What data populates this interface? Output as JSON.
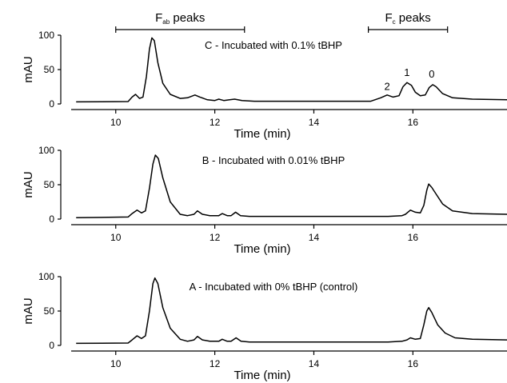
{
  "chart_data": {
    "type": "line",
    "x_unit": "min",
    "xlim": [
      9.1,
      17.9
    ],
    "ylim": [
      0,
      100
    ],
    "x_ticks": [
      10,
      12,
      14,
      16
    ],
    "y_ticks": [
      0,
      50,
      100
    ],
    "brackets": [
      {
        "main": "F",
        "sub": "ab",
        "rest": " peaks",
        "x_start": 10.0,
        "x_end": 12.6
      },
      {
        "main": "F",
        "sub": "c",
        "rest": " peaks",
        "x_start": 15.1,
        "x_end": 16.7
      }
    ],
    "panels": [
      {
        "annotation": "C - Incubated with 0.1% tBHP",
        "xlabel": "Time (min)",
        "ylabel": "mAU",
        "peak_labels": [
          {
            "text": "2",
            "x": 15.48,
            "y": 17
          },
          {
            "text": "1",
            "x": 15.88,
            "y": 37
          },
          {
            "text": "0",
            "x": 16.38,
            "y": 35
          }
        ],
        "points": [
          [
            9.2,
            3
          ],
          [
            10.25,
            3.5
          ],
          [
            10.33,
            10
          ],
          [
            10.4,
            14
          ],
          [
            10.48,
            8
          ],
          [
            10.55,
            10
          ],
          [
            10.62,
            40
          ],
          [
            10.68,
            80
          ],
          [
            10.73,
            96
          ],
          [
            10.78,
            92
          ],
          [
            10.85,
            60
          ],
          [
            10.95,
            30
          ],
          [
            11.1,
            14
          ],
          [
            11.3,
            8
          ],
          [
            11.45,
            9
          ],
          [
            11.6,
            13
          ],
          [
            11.7,
            10
          ],
          [
            11.85,
            6
          ],
          [
            12.0,
            5
          ],
          [
            12.08,
            7
          ],
          [
            12.18,
            5
          ],
          [
            12.3,
            6
          ],
          [
            12.4,
            7
          ],
          [
            12.55,
            5
          ],
          [
            12.8,
            4
          ],
          [
            14.0,
            4
          ],
          [
            15.15,
            4
          ],
          [
            15.35,
            9
          ],
          [
            15.48,
            13
          ],
          [
            15.6,
            10
          ],
          [
            15.72,
            12
          ],
          [
            15.8,
            25
          ],
          [
            15.88,
            31
          ],
          [
            15.97,
            27
          ],
          [
            16.05,
            17
          ],
          [
            16.15,
            12
          ],
          [
            16.25,
            13
          ],
          [
            16.33,
            24
          ],
          [
            16.4,
            28
          ],
          [
            16.47,
            25
          ],
          [
            16.6,
            15
          ],
          [
            16.8,
            9
          ],
          [
            17.2,
            7
          ],
          [
            17.9,
            6
          ]
        ]
      },
      {
        "annotation": "B - Incubated with 0.01% tBHP",
        "xlabel": "Time (min)",
        "ylabel": "mAU",
        "peak_labels": [],
        "points": [
          [
            9.2,
            2
          ],
          [
            10.25,
            3
          ],
          [
            10.33,
            8
          ],
          [
            10.43,
            13
          ],
          [
            10.52,
            9
          ],
          [
            10.6,
            12
          ],
          [
            10.68,
            45
          ],
          [
            10.75,
            80
          ],
          [
            10.8,
            93
          ],
          [
            10.86,
            88
          ],
          [
            10.95,
            60
          ],
          [
            11.1,
            25
          ],
          [
            11.3,
            7
          ],
          [
            11.45,
            5
          ],
          [
            11.58,
            7
          ],
          [
            11.65,
            12
          ],
          [
            11.75,
            7
          ],
          [
            11.9,
            5
          ],
          [
            12.08,
            5
          ],
          [
            12.15,
            8
          ],
          [
            12.25,
            5
          ],
          [
            12.33,
            5
          ],
          [
            12.42,
            10
          ],
          [
            12.52,
            5
          ],
          [
            12.7,
            4
          ],
          [
            14.0,
            4
          ],
          [
            15.5,
            4
          ],
          [
            15.78,
            5
          ],
          [
            15.85,
            7
          ],
          [
            15.95,
            13
          ],
          [
            16.05,
            10
          ],
          [
            16.15,
            9
          ],
          [
            16.22,
            20
          ],
          [
            16.28,
            42
          ],
          [
            16.32,
            51
          ],
          [
            16.38,
            46
          ],
          [
            16.48,
            35
          ],
          [
            16.6,
            22
          ],
          [
            16.8,
            12
          ],
          [
            17.2,
            8
          ],
          [
            17.9,
            7
          ]
        ]
      },
      {
        "annotation": "A - Incubated with 0% tBHP (control)",
        "xlabel": "Time (min)",
        "ylabel": "mAU",
        "peak_labels": [],
        "points": [
          [
            9.2,
            3
          ],
          [
            10.25,
            3.5
          ],
          [
            10.33,
            8
          ],
          [
            10.43,
            14
          ],
          [
            10.52,
            10
          ],
          [
            10.6,
            14
          ],
          [
            10.68,
            50
          ],
          [
            10.75,
            90
          ],
          [
            10.79,
            98
          ],
          [
            10.85,
            90
          ],
          [
            10.95,
            55
          ],
          [
            11.1,
            25
          ],
          [
            11.3,
            9
          ],
          [
            11.45,
            6
          ],
          [
            11.58,
            8
          ],
          [
            11.65,
            13
          ],
          [
            11.75,
            8
          ],
          [
            11.9,
            6
          ],
          [
            12.08,
            6
          ],
          [
            12.15,
            9
          ],
          [
            12.25,
            6
          ],
          [
            12.33,
            6
          ],
          [
            12.43,
            11
          ],
          [
            12.53,
            6
          ],
          [
            12.7,
            5
          ],
          [
            14.0,
            5
          ],
          [
            15.5,
            5
          ],
          [
            15.78,
            6
          ],
          [
            15.88,
            8
          ],
          [
            15.95,
            11
          ],
          [
            16.05,
            9
          ],
          [
            16.15,
            10
          ],
          [
            16.22,
            30
          ],
          [
            16.28,
            50
          ],
          [
            16.32,
            55
          ],
          [
            16.38,
            48
          ],
          [
            16.5,
            30
          ],
          [
            16.65,
            18
          ],
          [
            16.85,
            11
          ],
          [
            17.2,
            9
          ],
          [
            17.9,
            8
          ]
        ]
      }
    ]
  }
}
